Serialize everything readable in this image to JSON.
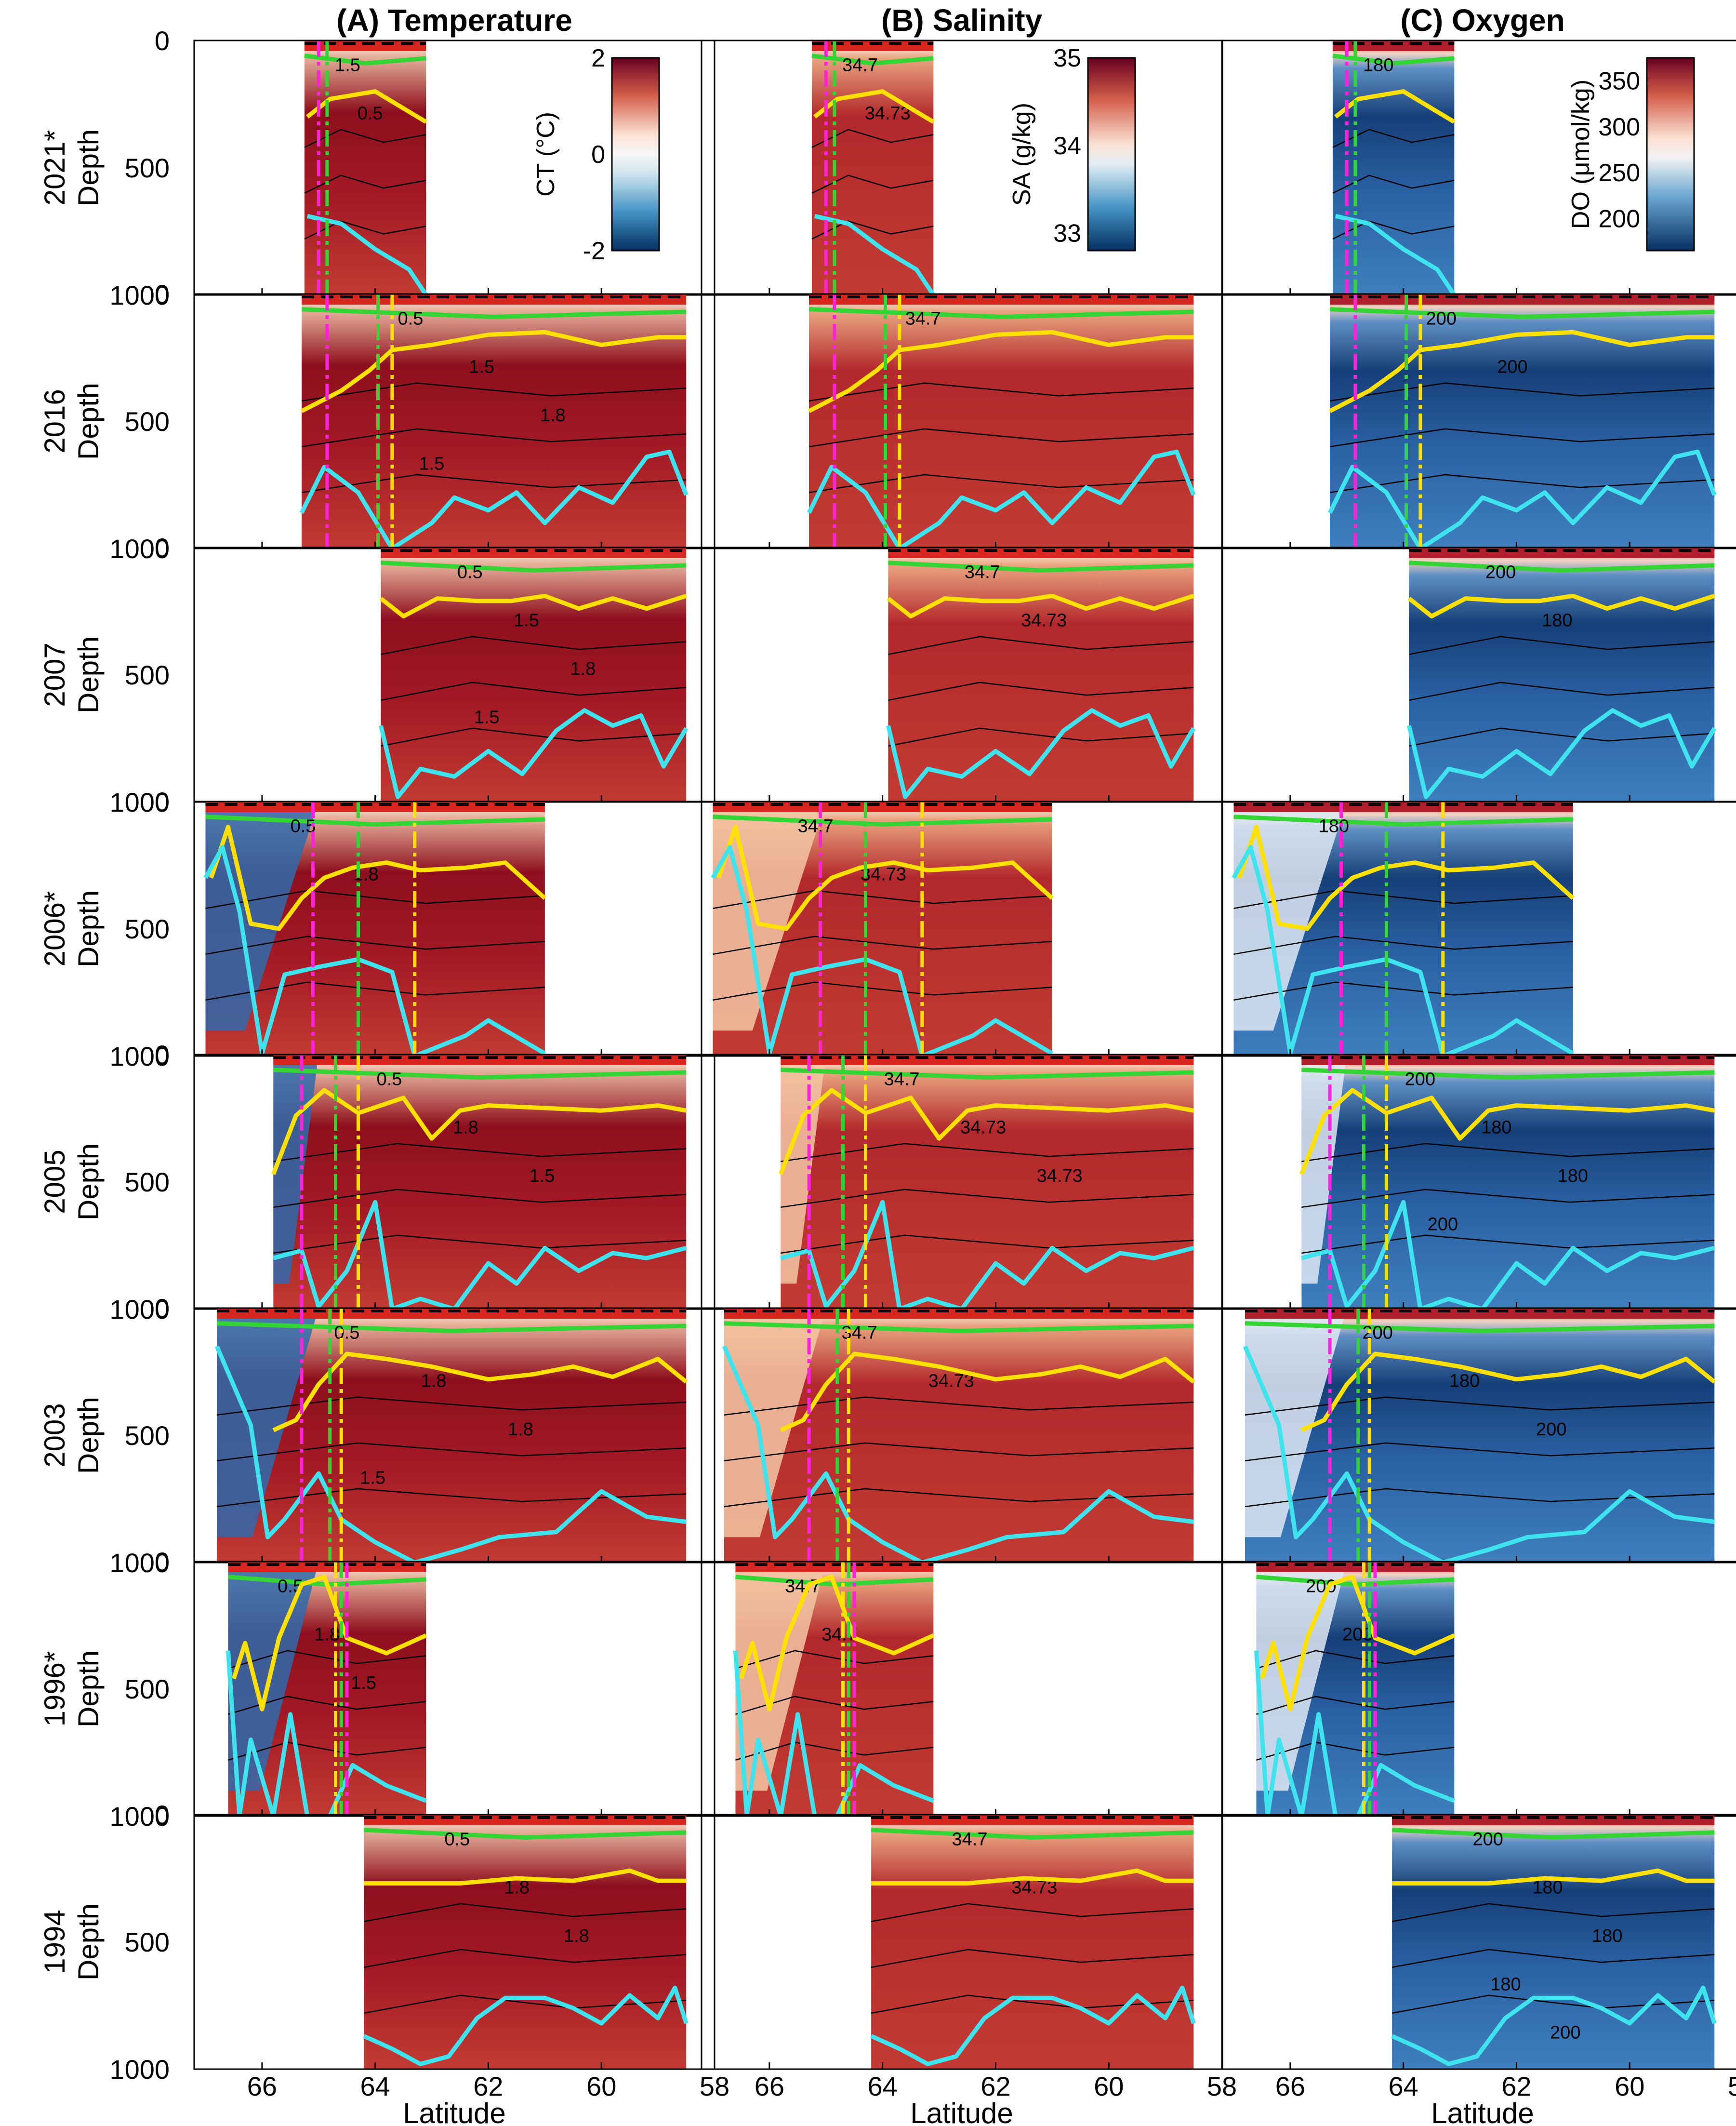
{
  "figure": {
    "column_titles": [
      "(A) Temperature",
      "(B) Salinity",
      "(C) Oxygen"
    ],
    "row_labels": [
      "2021*",
      "2016",
      "2007",
      "2006*",
      "2005",
      "2003",
      "1996*",
      "1994"
    ],
    "depth_label": "Depth",
    "latitude_label": "Latitude"
  },
  "chart_data": {
    "type": "heatmap",
    "x_axis": {
      "label": "Latitude",
      "range": [
        67.2,
        58
      ],
      "ticks": [
        66,
        64,
        62,
        60,
        58
      ],
      "reversed": true
    },
    "y_axis": {
      "label": "Depth",
      "range": [
        0,
        1000
      ],
      "ticks": [
        0,
        500,
        1000
      ],
      "reversed": true
    },
    "colorbars": [
      {
        "label": "CT (°C)",
        "range": [
          -2,
          2
        ],
        "ticks": [
          "2",
          "0",
          "-2"
        ],
        "tick_values": [
          2,
          0,
          -2
        ]
      },
      {
        "label": "SA (g/kg)",
        "range": [
          32.8,
          35
        ],
        "ticks": [
          "35",
          "34",
          "33"
        ],
        "tick_values": [
          35,
          34,
          33
        ]
      },
      {
        "label": "DO (μmol/kg)",
        "range": [
          165,
          375
        ],
        "ticks": [
          "350",
          "300",
          "250",
          "200"
        ],
        "tick_values": [
          350,
          300,
          250,
          200
        ]
      }
    ],
    "panel_colors": {
      "temperature": {
        "deep": "#c23b33",
        "core": "#8e0f1e",
        "cold": "#2f6bab"
      },
      "salinity": {
        "deep": "#c23b33",
        "core": "#b3282c",
        "fresh": "#f3c6a4"
      },
      "oxygen": {
        "deep": "#3f7fbd",
        "core": "#163f78",
        "high": "#b01e2b"
      }
    },
    "line_colors": {
      "yellow": "#ffe000",
      "cyan": "#3ee3ee",
      "green": "#33d433",
      "red": "#ff1a1a",
      "magenta": "#ff22dd",
      "contour": "#000000"
    },
    "sections": [
      {
        "year": "2021*",
        "lat_range": [
          65.25,
          63.1
        ],
        "magenta": 65.0,
        "green": 64.85,
        "yellow": null,
        "yellow_line": [
          [
            65.2,
            300
          ],
          [
            64.8,
            230
          ],
          [
            64.0,
            200
          ],
          [
            63.1,
            320
          ]
        ],
        "cyan_line": [
          [
            65.2,
            690
          ],
          [
            64.6,
            720
          ],
          [
            64.0,
            820
          ],
          [
            63.4,
            900
          ],
          [
            63.1,
            1000
          ]
        ],
        "contours": {
          "temperature": [
            "1.5",
            "0.5"
          ],
          "salinity": [
            "34.7",
            "34.73"
          ],
          "oxygen": [
            "180"
          ]
        }
      },
      {
        "year": "2016",
        "lat_range": [
          65.3,
          58.5
        ],
        "magenta": 64.85,
        "green": 63.95,
        "yellow": 63.7,
        "yellow_line": [
          [
            65.3,
            460
          ],
          [
            64.6,
            380
          ],
          [
            64.1,
            300
          ],
          [
            63.7,
            220
          ],
          [
            63.0,
            200
          ],
          [
            62.0,
            160
          ],
          [
            61.0,
            150
          ],
          [
            60.0,
            200
          ],
          [
            59.0,
            170
          ],
          [
            58.5,
            170
          ]
        ],
        "cyan_line": [
          [
            65.3,
            860
          ],
          [
            64.9,
            680
          ],
          [
            64.3,
            780
          ],
          [
            63.7,
            1000
          ],
          [
            63.0,
            900
          ],
          [
            62.6,
            800
          ],
          [
            62.0,
            850
          ],
          [
            61.5,
            780
          ],
          [
            61.0,
            900
          ],
          [
            60.4,
            760
          ],
          [
            59.8,
            820
          ],
          [
            59.2,
            640
          ],
          [
            58.8,
            620
          ],
          [
            58.5,
            790
          ]
        ],
        "contours": {
          "temperature": [
            "0.5",
            "1.5",
            "1.8",
            "1.5"
          ],
          "salinity": [
            "34.7"
          ],
          "oxygen": [
            "200",
            "200"
          ]
        }
      },
      {
        "year": "2007",
        "lat_range": [
          63.9,
          58.5
        ],
        "magenta": null,
        "green": null,
        "yellow": null,
        "yellow_line": [
          [
            63.9,
            200
          ],
          [
            63.5,
            270
          ],
          [
            62.9,
            200
          ],
          [
            62.2,
            210
          ],
          [
            61.6,
            210
          ],
          [
            61.0,
            190
          ],
          [
            60.4,
            240
          ],
          [
            59.8,
            200
          ],
          [
            59.2,
            240
          ],
          [
            58.5,
            190
          ]
        ],
        "cyan_line": [
          [
            63.9,
            700
          ],
          [
            63.6,
            980
          ],
          [
            63.2,
            870
          ],
          [
            62.6,
            900
          ],
          [
            62.0,
            800
          ],
          [
            61.4,
            890
          ],
          [
            60.8,
            720
          ],
          [
            60.3,
            640
          ],
          [
            59.8,
            700
          ],
          [
            59.3,
            660
          ],
          [
            58.9,
            860
          ],
          [
            58.5,
            710
          ]
        ],
        "contours": {
          "temperature": [
            "0.5",
            "1.5",
            "1.8",
            "1.5"
          ],
          "salinity": [
            "34.7",
            "34.73"
          ],
          "oxygen": [
            "200",
            "180"
          ]
        }
      },
      {
        "year": "2006*",
        "lat_range": [
          67.0,
          61.0
        ],
        "magenta": 65.1,
        "green": 64.3,
        "yellow": 63.3,
        "yellow_line": [
          [
            66.9,
            300
          ],
          [
            66.6,
            100
          ],
          [
            66.2,
            480
          ],
          [
            65.7,
            500
          ],
          [
            65.3,
            380
          ],
          [
            64.9,
            300
          ],
          [
            64.4,
            260
          ],
          [
            63.8,
            240
          ],
          [
            63.2,
            270
          ],
          [
            62.4,
            260
          ],
          [
            61.7,
            240
          ],
          [
            61.0,
            380
          ]
        ],
        "cyan_line": [
          [
            67.0,
            300
          ],
          [
            66.7,
            180
          ],
          [
            66.4,
            430
          ],
          [
            66.0,
            990
          ],
          [
            65.6,
            680
          ],
          [
            65.0,
            650
          ],
          [
            64.3,
            620
          ],
          [
            63.7,
            670
          ],
          [
            63.3,
            1000
          ],
          [
            62.4,
            920
          ],
          [
            62.0,
            860
          ],
          [
            61.0,
            990
          ]
        ],
        "contours": {
          "temperature": [
            "0.5",
            "1.8"
          ],
          "salinity": [
            "34.7",
            "34.73"
          ],
          "oxygen": [
            "180"
          ]
        }
      },
      {
        "year": "2005",
        "lat_range": [
          65.8,
          58.5
        ],
        "magenta": 65.3,
        "green": 64.7,
        "yellow": 64.3,
        "yellow_line": [
          [
            65.8,
            470
          ],
          [
            65.4,
            240
          ],
          [
            64.9,
            140
          ],
          [
            64.3,
            230
          ],
          [
            63.5,
            170
          ],
          [
            63.0,
            330
          ],
          [
            62.5,
            220
          ],
          [
            62.0,
            200
          ],
          [
            61.0,
            210
          ],
          [
            60.0,
            220
          ],
          [
            59.0,
            200
          ],
          [
            58.5,
            220
          ]
        ],
        "cyan_line": [
          [
            65.8,
            800
          ],
          [
            65.3,
            770
          ],
          [
            65.0,
            990
          ],
          [
            64.5,
            850
          ],
          [
            64.0,
            580
          ],
          [
            63.7,
            1000
          ],
          [
            63.2,
            960
          ],
          [
            62.6,
            1000
          ],
          [
            62.0,
            820
          ],
          [
            61.5,
            900
          ],
          [
            61.0,
            760
          ],
          [
            60.4,
            850
          ],
          [
            59.8,
            780
          ],
          [
            59.2,
            800
          ],
          [
            58.5,
            760
          ]
        ],
        "contours": {
          "temperature": [
            "0.5",
            "1.8",
            "1.5"
          ],
          "salinity": [
            "34.7",
            "34.73",
            "34.73"
          ],
          "oxygen": [
            "200",
            "180",
            "180",
            "200"
          ]
        }
      },
      {
        "year": "2003",
        "lat_range": [
          66.8,
          58.5
        ],
        "magenta": 65.3,
        "green": 64.8,
        "yellow": 64.6,
        "yellow_line": [
          [
            65.8,
            480
          ],
          [
            65.4,
            440
          ],
          [
            65.0,
            300
          ],
          [
            64.5,
            180
          ],
          [
            63.8,
            200
          ],
          [
            63.0,
            230
          ],
          [
            62.0,
            280
          ],
          [
            61.2,
            260
          ],
          [
            60.5,
            230
          ],
          [
            59.8,
            270
          ],
          [
            59.0,
            200
          ],
          [
            58.5,
            290
          ]
        ],
        "cyan_line": [
          [
            66.8,
            150
          ],
          [
            66.2,
            460
          ],
          [
            65.9,
            900
          ],
          [
            65.6,
            830
          ],
          [
            65.0,
            650
          ],
          [
            64.6,
            830
          ],
          [
            64.0,
            920
          ],
          [
            63.3,
            1000
          ],
          [
            62.5,
            950
          ],
          [
            61.8,
            900
          ],
          [
            60.8,
            880
          ],
          [
            60.0,
            720
          ],
          [
            59.2,
            820
          ],
          [
            58.5,
            840
          ]
        ],
        "contours": {
          "temperature": [
            "0.5",
            "1.8",
            "1.8",
            "1.5"
          ],
          "salinity": [
            "34.7",
            "34.73"
          ],
          "oxygen": [
            "200",
            "180",
            "200"
          ]
        }
      },
      {
        "year": "1996*",
        "lat_range": [
          66.6,
          63.1
        ],
        "magenta": 64.5,
        "green": 64.6,
        "yellow": 64.7,
        "yellow_line": [
          [
            66.5,
            460
          ],
          [
            66.3,
            320
          ],
          [
            66.0,
            580
          ],
          [
            65.7,
            300
          ],
          [
            65.3,
            90
          ],
          [
            64.9,
            60
          ],
          [
            64.5,
            300
          ],
          [
            63.8,
            360
          ],
          [
            63.1,
            290
          ]
        ],
        "cyan_line": [
          [
            66.6,
            350
          ],
          [
            66.4,
            1000
          ],
          [
            66.2,
            700
          ],
          [
            65.8,
            1000
          ],
          [
            65.5,
            600
          ],
          [
            65.2,
            1000
          ],
          [
            64.8,
            1000
          ],
          [
            64.4,
            800
          ],
          [
            63.8,
            880
          ],
          [
            63.1,
            940
          ]
        ],
        "contours": {
          "temperature": [
            "0.5",
            "1.8",
            "1.5"
          ],
          "salinity": [
            "34.7",
            "34.7"
          ],
          "oxygen": [
            "200",
            "200"
          ]
        }
      },
      {
        "year": "1994",
        "lat_range": [
          64.2,
          58.5
        ],
        "magenta": null,
        "green": null,
        "yellow": null,
        "yellow_line": [
          [
            64.2,
            270
          ],
          [
            63.5,
            270
          ],
          [
            62.5,
            270
          ],
          [
            61.5,
            250
          ],
          [
            60.5,
            260
          ],
          [
            59.5,
            220
          ],
          [
            59.0,
            260
          ],
          [
            58.5,
            260
          ]
        ],
        "cyan_line": [
          [
            64.2,
            870
          ],
          [
            63.7,
            920
          ],
          [
            63.2,
            980
          ],
          [
            62.7,
            950
          ],
          [
            62.2,
            800
          ],
          [
            61.7,
            720
          ],
          [
            61.0,
            720
          ],
          [
            60.5,
            760
          ],
          [
            60.0,
            820
          ],
          [
            59.5,
            710
          ],
          [
            59.0,
            800
          ],
          [
            58.7,
            680
          ],
          [
            58.5,
            820
          ]
        ],
        "contours": {
          "temperature": [
            "0.5",
            "1.8",
            "1.8"
          ],
          "salinity": [
            "34.7",
            "34.73"
          ],
          "oxygen": [
            "200",
            "180",
            "180",
            "180",
            "200",
            "200"
          ]
        }
      }
    ]
  }
}
